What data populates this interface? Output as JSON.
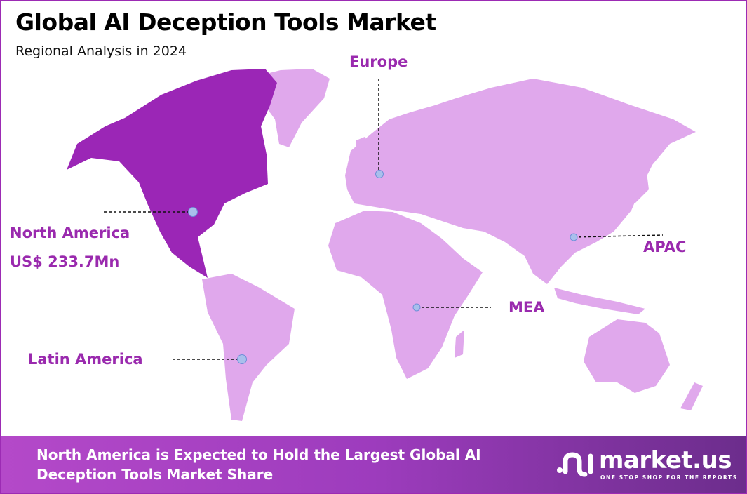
{
  "header": {
    "title": "Global AI Deception Tools Market",
    "subtitle": "Regional Analysis in 2024"
  },
  "colors": {
    "highlight_region": "#9b26b6",
    "other_regions": "#e0a8ec",
    "label": "#9a2aae",
    "marker": "#a9bfec",
    "border": "#9c2bb4"
  },
  "regions": [
    {
      "name": "North America",
      "value": "US$ 233.7Mn",
      "highlighted": true
    },
    {
      "name": "Europe"
    },
    {
      "name": "APAC"
    },
    {
      "name": "MEA"
    },
    {
      "name": "Latin America"
    }
  ],
  "banner": {
    "text": "North America is Expected to Hold the Largest Global AI Deception Tools Market Share"
  },
  "logo": {
    "name": "market.us",
    "tagline": "ONE STOP SHOP FOR THE REPORTS"
  }
}
